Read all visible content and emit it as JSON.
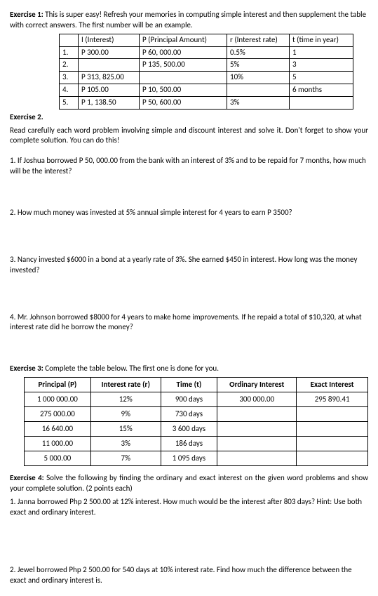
{
  "ex1": {
    "title": "Exercise 1:",
    "intro": " This is super easy! Refresh your memories in computing simple interest and then supplement the table with correct answers. The first number will be an example.",
    "headers": [
      "",
      "I (Interest)",
      "P (Principal Amount)",
      "r (Interest rate)",
      "t (time in year)"
    ],
    "rows": [
      [
        "1.",
        "P 300.00",
        "P 60, 000.00",
        "0.5%",
        "1"
      ],
      [
        "2.",
        "",
        "P 135, 500.00",
        "5%",
        "3"
      ],
      [
        "3.",
        "P 313, 825.00",
        "",
        "10%",
        "5"
      ],
      [
        "4.",
        "P 105.00",
        "P 10, 500.00",
        "",
        "6 months"
      ],
      [
        "5.",
        "P 1, 138.50",
        "P 50, 600.00",
        "3%",
        ""
      ]
    ],
    "col_widths": [
      "18px",
      "78px",
      "116px",
      "80px",
      "82px"
    ]
  },
  "ex2": {
    "title": "Exercise 2.",
    "intro": "Read carefully each word problem involving simple and discount interest and solve it. Don't forget to show your complete solution. You can do this!",
    "q1": "1. If Joshua borrowed P 50, 000.00 from the bank with an interest of 3% and to be repaid for 7 months, how much will be the interest?",
    "q2": "2. How much money was invested at 5% annual simple interest for 4 years to earn P 3500?",
    "q3": "3. Nancy invested $6000 in a bond at a yearly rate of 3%. She earned $450 in interest. How long was the money invested?",
    "q4": "4. Mr. Johnson borrowed $8000 for 4 years to make home improvements. If he repaid a total of $10,320, at what interest rate did he borrow the money?"
  },
  "ex3": {
    "title": "Exercise 3:",
    "intro": " Complete the table below. The first one is done for you.",
    "headers": [
      "Principal (P)",
      "Interest rate (r)",
      "Time (t)",
      "Ordinary Interest",
      "Exact Interest"
    ],
    "rows": [
      [
        "1 000 000.00",
        "12%",
        "900 days",
        "300 000.00",
        "295 890.41"
      ],
      [
        "275 000.00",
        "9%",
        "730 days",
        "",
        ""
      ],
      [
        "16 640.00",
        "15%",
        "3 600 days",
        "",
        ""
      ],
      [
        "11 000.00",
        "3%",
        "186 days",
        "",
        ""
      ],
      [
        "5 000.00",
        "7%",
        "1 095 days",
        "",
        ""
      ]
    ],
    "col_widths": [
      "86px",
      "92px",
      "72px",
      "106px",
      "94px"
    ]
  },
  "ex4": {
    "title": "Exercise 4:",
    "intro": " Solve the following by finding the ordinary and exact interest on the given word problems and show your complete solution. (2 points each)",
    "q1": "1. Janna borrowed Php 2 500.00 at 12% interest. How much would be the interest after 803 days? Hint: Use both exact and ordinary interest.",
    "q2": "2. Jewel borrowed Php 2 500.00 for 540 days at 10% interest rate. Find how much the difference between the exact and ordinary interest is."
  }
}
